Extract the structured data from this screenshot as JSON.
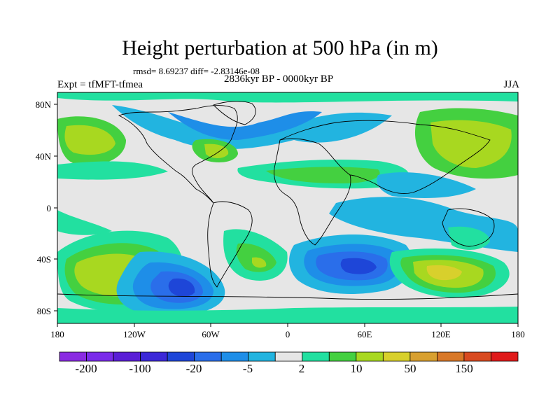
{
  "title": "Height perturbation at 500 hPa (in m)",
  "stats": "rmsd= 8.69237 diff= -2.83146e-08",
  "experiment": "Expt = tfMFT-tfmea",
  "period": "2836kyr BP - 0000kyr BP",
  "season": "JJA",
  "map": {
    "lat_labels": [
      "80N",
      "40N",
      "0",
      "40S",
      "80S"
    ],
    "lon_labels": [
      "180",
      "120W",
      "60W",
      "0",
      "60E",
      "120E",
      "180"
    ]
  },
  "colorbar": {
    "colors": [
      "#8a2be2",
      "#7a2bea",
      "#5a1ed6",
      "#3c28d8",
      "#1e46d8",
      "#2a6eea",
      "#1e8ee8",
      "#22b4e0",
      "#e6e6e6",
      "#22e0a0",
      "#44d040",
      "#a8d820",
      "#d8d02c",
      "#d8a030",
      "#d87828",
      "#d84a20",
      "#e01a1a"
    ],
    "labels": [
      "-200",
      "-100",
      "-20",
      "-5",
      "2",
      "10",
      "50",
      "150"
    ]
  },
  "colors": {
    "background": "#e6e6e6",
    "frame": "#000000"
  }
}
